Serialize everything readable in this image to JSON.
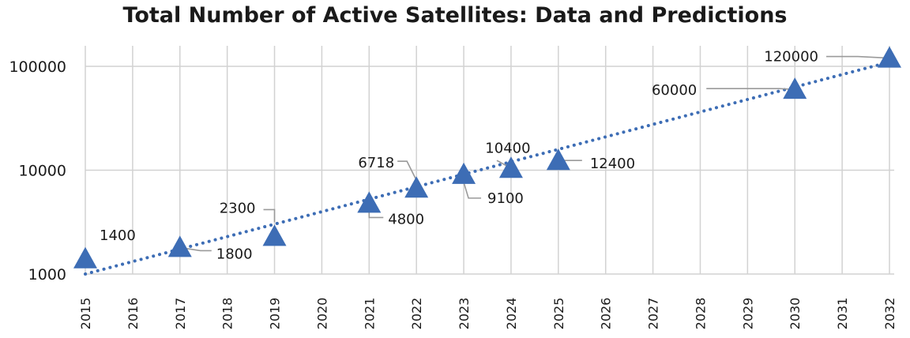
{
  "chart_data": {
    "type": "scatter",
    "title": "Total Number of Active Satellites: Data and Predictions",
    "xlabel": "",
    "ylabel": "",
    "y_scale": "log",
    "ylim": [
      1000,
      140000
    ],
    "xlim": [
      2015,
      2032
    ],
    "x_ticks": [
      "2015",
      "2016",
      "2017",
      "2018",
      "2019",
      "2020",
      "2021",
      "2022",
      "2023",
      "2024",
      "2025",
      "2026",
      "2027",
      "2028",
      "2029",
      "2030",
      "2031",
      "2032"
    ],
    "y_ticks": [
      {
        "value": 1000,
        "label": "1000"
      },
      {
        "value": 10000,
        "label": "10000"
      },
      {
        "value": 100000,
        "label": "100000"
      }
    ],
    "grid": true,
    "marker": "triangle",
    "marker_color": "#3d6db5",
    "trendline": {
      "style": "dotted",
      "color": "#3d6db5",
      "from": [
        2015,
        1000
      ],
      "to": [
        2032,
        110000
      ]
    },
    "points": [
      {
        "x": 2015,
        "y": 1400,
        "label": "1400"
      },
      {
        "x": 2017,
        "y": 1800,
        "label": "1800"
      },
      {
        "x": 2019,
        "y": 2300,
        "label": "2300"
      },
      {
        "x": 2021,
        "y": 4800,
        "label": "4800"
      },
      {
        "x": 2022,
        "y": 6718,
        "label": "6718"
      },
      {
        "x": 2023,
        "y": 9100,
        "label": "9100"
      },
      {
        "x": 2024,
        "y": 10400,
        "label": "10400"
      },
      {
        "x": 2025,
        "y": 12400,
        "label": "12400"
      },
      {
        "x": 2030,
        "y": 60000,
        "label": "60000"
      },
      {
        "x": 2032,
        "y": 120000,
        "label": "120000"
      }
    ]
  }
}
